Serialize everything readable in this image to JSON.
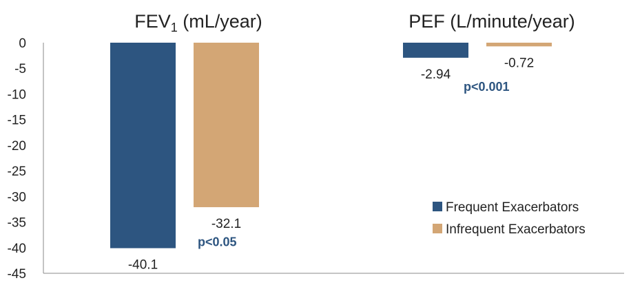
{
  "chart_data": {
    "type": "bar",
    "ylim": [
      -45,
      0
    ],
    "yticks": [
      0,
      -5,
      -10,
      -15,
      -20,
      -25,
      -30,
      -35,
      -40,
      -45
    ],
    "grid": false,
    "legend_position": "bottom-right",
    "panels": [
      {
        "title_main": "FEV",
        "title_sub": "1",
        "title_rest": " (mL/year)",
        "values": [
          -40.1,
          -32.1
        ],
        "labels": [
          "-40.1",
          "-32.1"
        ],
        "significance": "p<0.05"
      },
      {
        "title_main": "PEF (L/minute/year)",
        "title_sub": "",
        "title_rest": "",
        "values": [
          -2.94,
          -0.72
        ],
        "labels": [
          "-2.94",
          "-0.72"
        ],
        "significance": "p<0.001"
      }
    ],
    "series": [
      {
        "name": "Frequent Exacerbators",
        "color": "#2d5580"
      },
      {
        "name": "Infrequent Exacerbators",
        "color": "#d3a675"
      }
    ],
    "significance_color": "#2d5580"
  }
}
